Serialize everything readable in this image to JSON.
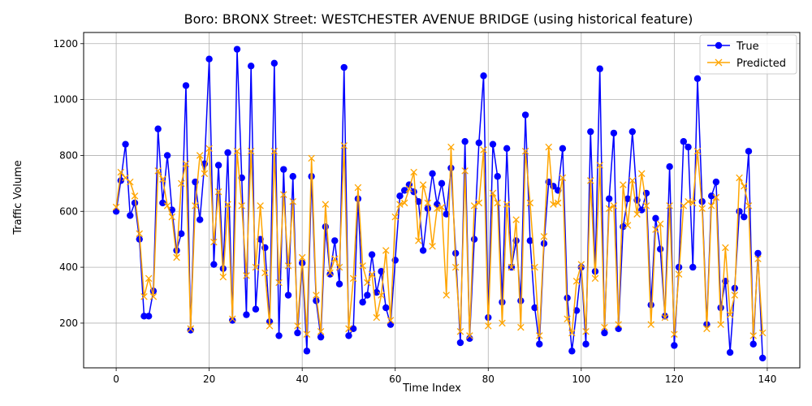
{
  "chart_data": {
    "type": "line",
    "title": "Boro: BRONX Street: WESTCHESTER AVENUE BRIDGE (using historical feature)",
    "xlabel": "Time Index",
    "ylabel": "Traffic Volume",
    "xlim": [
      -7,
      147
    ],
    "ylim": [
      40,
      1240
    ],
    "xticks": [
      0,
      20,
      40,
      60,
      80,
      100,
      120,
      140
    ],
    "yticks": [
      200,
      400,
      600,
      800,
      1000,
      1200
    ],
    "grid": true,
    "legend_position": "top-right",
    "series": [
      {
        "name": "True",
        "color": "#0000ff",
        "marker": "circle",
        "values": [
          600,
          710,
          840,
          585,
          630,
          500,
          225,
          225,
          315,
          895,
          630,
          800,
          605,
          460,
          520,
          1050,
          175,
          705,
          570,
          770,
          1145,
          410,
          765,
          395,
          810,
          210,
          1180,
          720,
          230,
          1120,
          250,
          500,
          470,
          205,
          1130,
          155,
          750,
          300,
          725,
          165,
          415,
          100,
          725,
          280,
          150,
          545,
          375,
          495,
          340,
          1115,
          155,
          180,
          645,
          275,
          300,
          445,
          310,
          385,
          255,
          195,
          425,
          655,
          675,
          695,
          670,
          635,
          460,
          610,
          735,
          625,
          700,
          590,
          755,
          450,
          130,
          850,
          145,
          500,
          845,
          1085,
          220,
          840,
          725,
          275,
          825,
          400,
          495,
          280,
          945,
          495,
          255,
          125,
          485,
          705,
          690,
          675,
          825,
          290,
          100,
          245,
          400,
          125,
          885,
          385,
          1110,
          165,
          645,
          880,
          180,
          545,
          645,
          885,
          640,
          605,
          665,
          265,
          575,
          465,
          225,
          760,
          120,
          400,
          850,
          830,
          400,
          1075,
          635,
          195,
          655,
          705,
          255,
          350,
          95,
          325,
          600,
          580,
          815,
          125,
          450,
          75
        ]
      },
      {
        "name": "Predicted",
        "color": "#ffa500",
        "marker": "x",
        "values": [
          615,
          740,
          720,
          705,
          655,
          520,
          295,
          360,
          295,
          745,
          715,
          620,
          580,
          435,
          700,
          770,
          180,
          620,
          800,
          735,
          825,
          490,
          670,
          365,
          625,
          215,
          815,
          620,
          370,
          815,
          400,
          620,
          380,
          190,
          815,
          345,
          660,
          405,
          635,
          190,
          435,
          160,
          790,
          300,
          170,
          625,
          380,
          430,
          400,
          835,
          180,
          360,
          685,
          405,
          345,
          375,
          220,
          300,
          460,
          210,
          580,
          625,
          630,
          680,
          740,
          495,
          695,
          630,
          475,
          610,
          615,
          300,
          830,
          400,
          170,
          745,
          155,
          620,
          630,
          820,
          190,
          665,
          630,
          200,
          625,
          400,
          570,
          185,
          815,
          630,
          400,
          155,
          510,
          830,
          625,
          630,
          720,
          215,
          165,
          350,
          410,
          170,
          710,
          360,
          765,
          185,
          610,
          620,
          195,
          695,
          550,
          710,
          590,
          735,
          620,
          195,
          535,
          555,
          220,
          620,
          160,
          375,
          620,
          635,
          630,
          815,
          610,
          180,
          620,
          650,
          195,
          470,
          230,
          300,
          720,
          690,
          620,
          155,
          430,
          165
        ]
      }
    ]
  }
}
